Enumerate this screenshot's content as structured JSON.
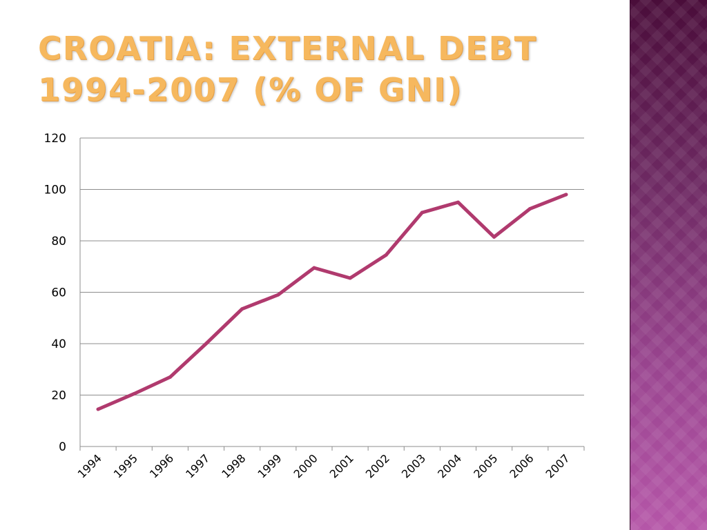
{
  "title": {
    "line1": "CROATIA: EXTERNAL DEBT",
    "line2": "1994-2007 (% OF GNI)"
  },
  "colors": {
    "title": "#f6b85e",
    "line": "#b03a6e",
    "grid": "#8c8c8c",
    "panel_top": "#4a0d3a",
    "panel_bottom": "#b556a8"
  },
  "chart_data": {
    "type": "line",
    "categories": [
      "1994",
      "1995",
      "1996",
      "1997",
      "1998",
      "1999",
      "2000",
      "2001",
      "2002",
      "2003",
      "2004",
      "2005",
      "2006",
      "2007"
    ],
    "series": [
      {
        "values": [
          14.5,
          20.5,
          27,
          40,
          53.5,
          59,
          69.5,
          65.5,
          74.5,
          91,
          95,
          81.5,
          92.5,
          98
        ]
      }
    ],
    "ylim": [
      0,
      120
    ],
    "yticks": [
      0,
      20,
      40,
      60,
      80,
      100,
      120
    ],
    "grid": true,
    "legend": "none"
  }
}
